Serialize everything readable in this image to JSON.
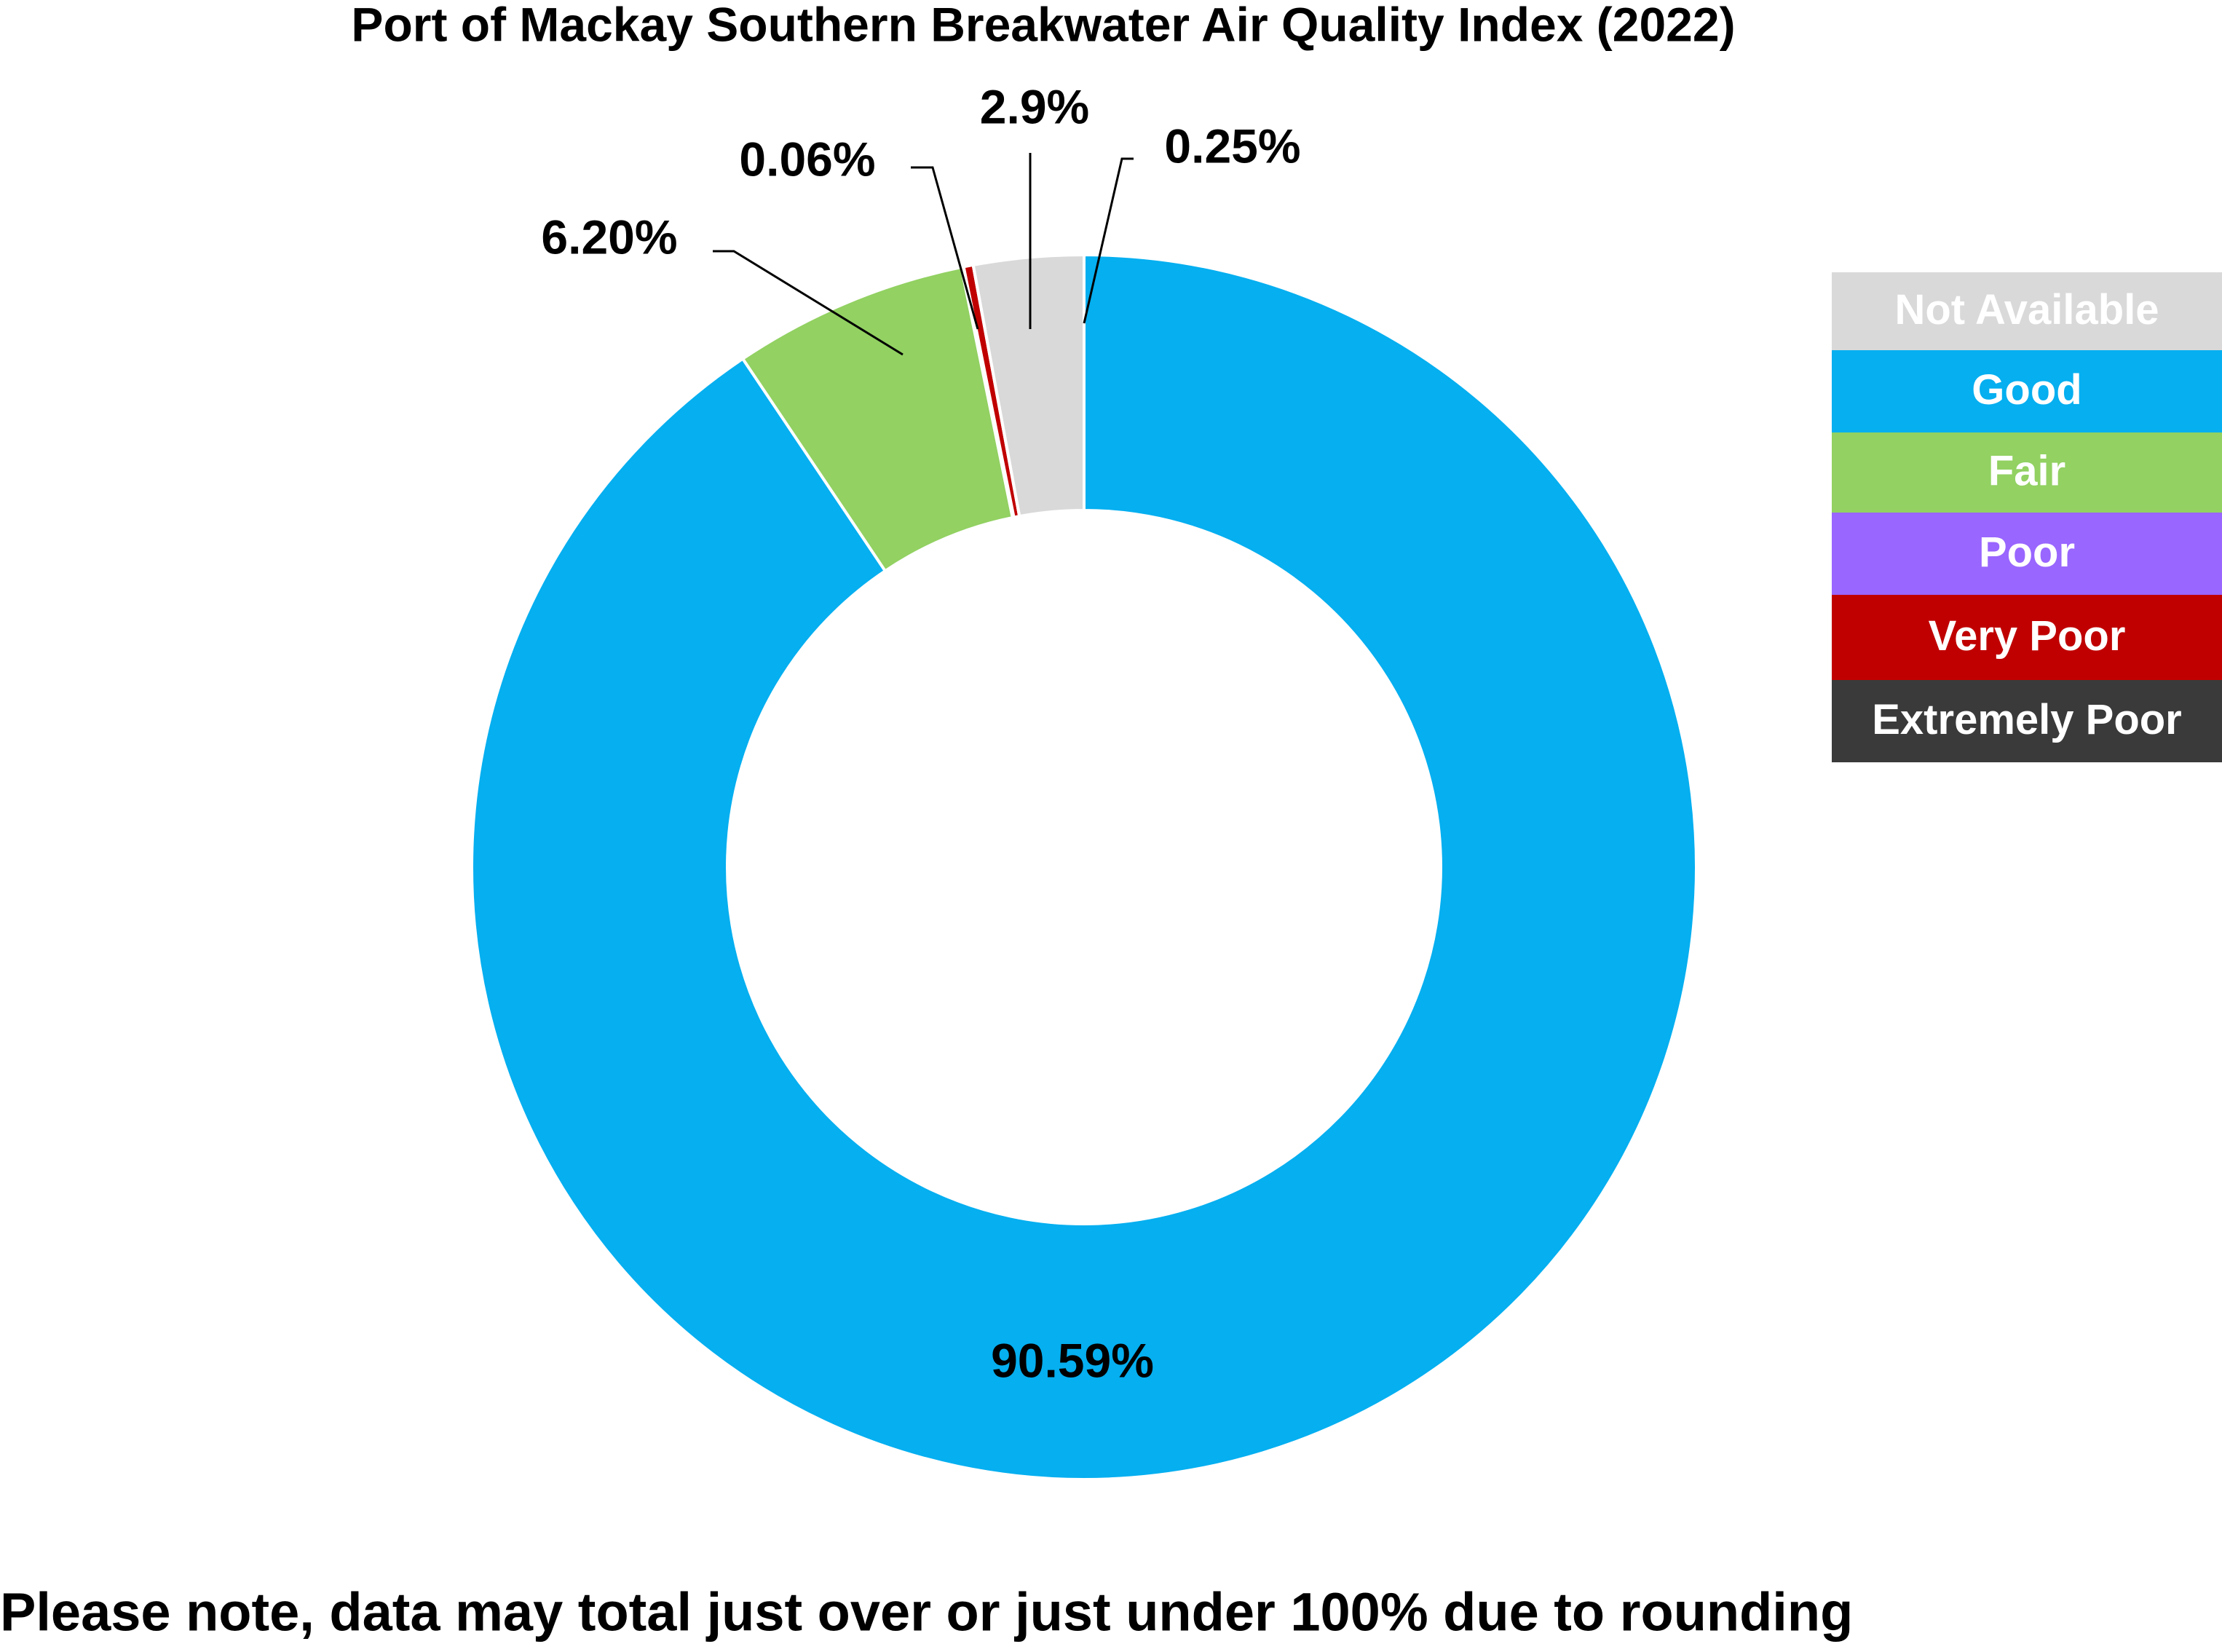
{
  "chart_data": {
    "type": "donut",
    "title": "Port of Mackay Southern Breakwater Air Quality Index (2022)",
    "categories": [
      "Not Available",
      "Good",
      "Fair",
      "Poor",
      "Very Poor",
      "Extremely Poor"
    ],
    "values": [
      2.9,
      90.59,
      6.2,
      0.06,
      0.25,
      0
    ],
    "value_labels": [
      "2.9%",
      "90.59%",
      "6.20%",
      "0.06%",
      "0.25%",
      null
    ],
    "colors": [
      "#d9d9d9",
      "#05aff0",
      "#92d162",
      "#9966ff",
      "#c00000",
      "#3a3a3a"
    ],
    "legend": "right",
    "note": "Please note, data may total just over or just under 100% due to rounding"
  }
}
